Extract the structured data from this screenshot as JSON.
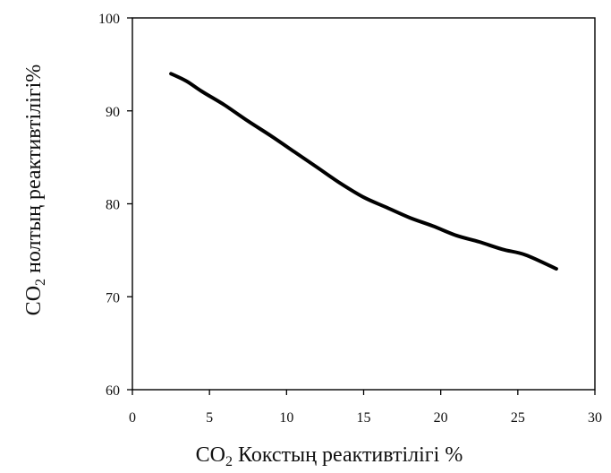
{
  "chart_data": {
    "type": "line",
    "xlabel": {
      "prefix": "CO",
      "subscript": "2",
      "suffix": " Кокстың реактивтілігі %"
    },
    "ylabel": {
      "prefix": "CO",
      "subscript": "2",
      "suffix": " нолтың реактивтілігі%"
    },
    "xlim": [
      0,
      30
    ],
    "ylim": [
      60,
      100
    ],
    "x_ticks": [
      0,
      5,
      10,
      15,
      20,
      25,
      30
    ],
    "y_ticks": [
      60,
      70,
      80,
      90,
      100
    ],
    "x_tick_labels": [
      "0",
      "5",
      "10",
      "15",
      "20",
      "25",
      "30"
    ],
    "y_tick_labels": [
      "60",
      "70",
      "80",
      "90",
      "100"
    ],
    "grid": false,
    "legend": "none",
    "series": [
      {
        "color": "#000000",
        "x": [
          2.5,
          3.5,
          4.5,
          6,
          7.5,
          9,
          10.5,
          12,
          13.5,
          15,
          16.5,
          18,
          19.5,
          21,
          22.5,
          24,
          25.5,
          27.5
        ],
        "y": [
          94,
          93.2,
          92.1,
          90.6,
          88.9,
          87.3,
          85.6,
          83.9,
          82.2,
          80.7,
          79.6,
          78.5,
          77.6,
          76.6,
          75.9,
          75.1,
          74.5,
          73
        ]
      }
    ]
  }
}
